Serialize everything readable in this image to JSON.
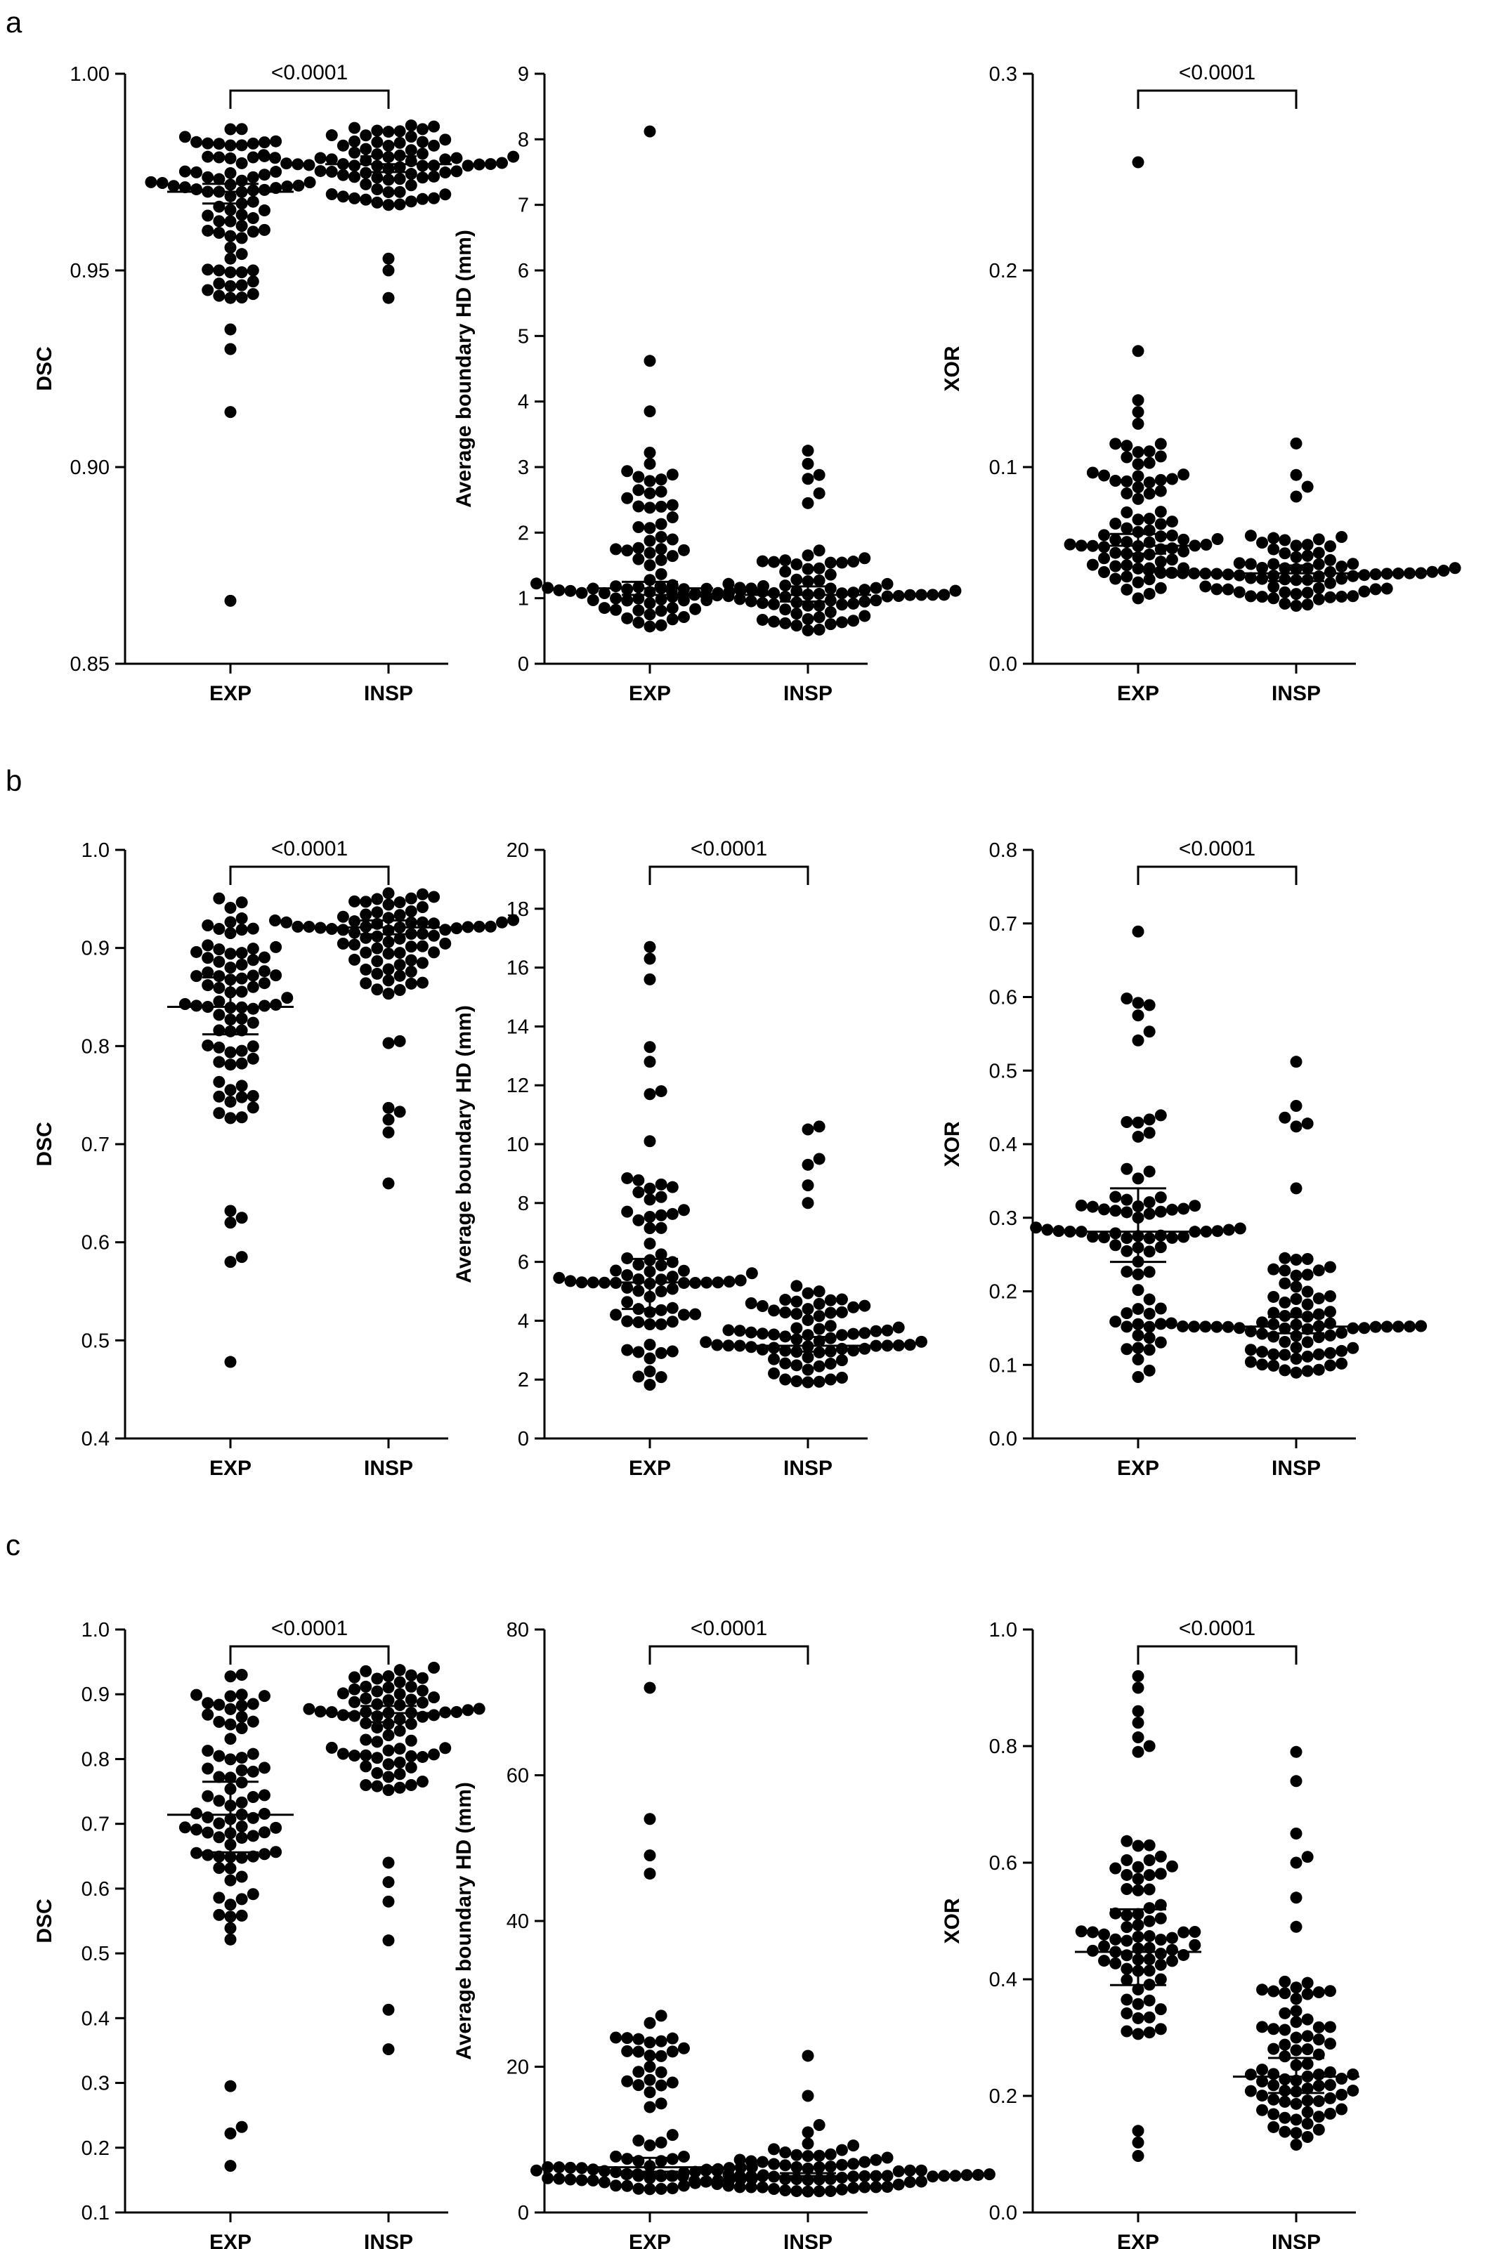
{
  "panel_labels": [
    "a",
    "b",
    "c"
  ],
  "chart_data": [
    {
      "type": "scatter",
      "panel": "a",
      "ylabel": "DSC",
      "ylim": [
        0.85,
        1.0
      ],
      "yticks": [
        0.85,
        0.9,
        0.95,
        1.0
      ],
      "ytick_labels": [
        "0.85",
        "0.90",
        "0.95",
        "1.00"
      ],
      "categories": [
        "EXP",
        "INSP"
      ],
      "significance": "<0.0001",
      "series": [
        {
          "category": "EXP",
          "median": 0.97,
          "ci": [
            0.967,
            0.972
          ],
          "min": 0.866,
          "max": 0.986,
          "n": 80,
          "outliers": [
            0.866,
            0.914,
            0.93,
            0.935,
            0.943,
            0.945,
            0.946,
            0.95,
            0.953
          ]
        },
        {
          "category": "INSP",
          "median": 0.977,
          "ci": [
            0.975,
            0.979
          ],
          "min": 0.943,
          "max": 0.987,
          "n": 80,
          "outliers": [
            0.943,
            0.95,
            0.953
          ]
        }
      ]
    },
    {
      "type": "scatter",
      "panel": "a",
      "ylabel": "Average boundary HD (mm)",
      "ylim": [
        0,
        9
      ],
      "yticks": [
        0,
        1,
        2,
        3,
        4,
        5,
        6,
        7,
        8,
        9
      ],
      "ytick_labels": [
        "0",
        "1",
        "2",
        "3",
        "4",
        "5",
        "6",
        "7",
        "8",
        "9"
      ],
      "categories": [
        "EXP",
        "INSP"
      ],
      "significance": "",
      "series": [
        {
          "category": "EXP",
          "median": 1.15,
          "ci": [
            1.05,
            1.25
          ],
          "min": 0.55,
          "max": 8.12,
          "n": 80,
          "outliers": [
            8.12,
            4.62,
            3.85,
            3.22,
            3.05,
            2.85,
            2.6,
            2.4
          ]
        },
        {
          "category": "INSP",
          "median": 1.05,
          "ci": [
            0.95,
            1.18
          ],
          "min": 0.5,
          "max": 3.25,
          "n": 80,
          "outliers": [
            3.25,
            3.05,
            2.88,
            2.82,
            2.6,
            2.45
          ]
        }
      ]
    },
    {
      "type": "scatter",
      "panel": "a",
      "ylabel": "XOR",
      "ylim": [
        0.0,
        0.3
      ],
      "yticks": [
        0.0,
        0.1,
        0.2,
        0.3
      ],
      "ytick_labels": [
        "0.0",
        "0.1",
        "0.2",
        "0.3"
      ],
      "categories": [
        "EXP",
        "INSP"
      ],
      "significance": "<0.0001",
      "series": [
        {
          "category": "EXP",
          "median": 0.06,
          "ci": [
            0.056,
            0.066
          ],
          "min": 0.028,
          "max": 0.255,
          "n": 80,
          "outliers": [
            0.255,
            0.159,
            0.134,
            0.128,
            0.122,
            0.108,
            0.105
          ]
        },
        {
          "category": "INSP",
          "median": 0.046,
          "ci": [
            0.042,
            0.05
          ],
          "min": 0.027,
          "max": 0.112,
          "n": 80,
          "outliers": [
            0.112,
            0.096,
            0.09,
            0.085
          ]
        }
      ]
    },
    {
      "type": "scatter",
      "panel": "b",
      "ylabel": "DSC",
      "ylim": [
        0.4,
        1.0
      ],
      "yticks": [
        0.4,
        0.5,
        0.6,
        0.7,
        0.8,
        0.9,
        1.0
      ],
      "ytick_labels": [
        "0.4",
        "0.5",
        "0.6",
        "0.7",
        "0.8",
        "0.9",
        "1.0"
      ],
      "categories": [
        "EXP",
        "INSP"
      ],
      "significance": "<0.0001",
      "series": [
        {
          "category": "EXP",
          "median": 0.84,
          "ci": [
            0.812,
            0.87
          ],
          "min": 0.478,
          "max": 0.958,
          "n": 80,
          "outliers": [
            0.478,
            0.58,
            0.585,
            0.62,
            0.625,
            0.632
          ]
        },
        {
          "category": "INSP",
          "median": 0.921,
          "ci": [
            0.914,
            0.928
          ],
          "min": 0.66,
          "max": 0.958,
          "n": 80,
          "outliers": [
            0.66,
            0.712,
            0.725,
            0.733,
            0.737,
            0.803,
            0.805
          ]
        }
      ]
    },
    {
      "type": "scatter",
      "panel": "b",
      "ylabel": "Average boundary HD (mm)",
      "ylim": [
        0,
        20
      ],
      "yticks": [
        0,
        2,
        4,
        6,
        8,
        10,
        12,
        14,
        16,
        18,
        20
      ],
      "ytick_labels": [
        "0",
        "2",
        "4",
        "6",
        "8",
        "10",
        "12",
        "14",
        "16",
        "18",
        "20"
      ],
      "categories": [
        "EXP",
        "INSP"
      ],
      "significance": "<0.0001",
      "series": [
        {
          "category": "EXP",
          "median": 5.3,
          "ci": [
            4.4,
            6.1
          ],
          "min": 1.8,
          "max": 16.7,
          "n": 80,
          "outliers": [
            16.7,
            16.3,
            15.6,
            13.3,
            12.8,
            11.8,
            11.7,
            10.1
          ]
        },
        {
          "category": "INSP",
          "median": 3.15,
          "ci": [
            2.95,
            3.45
          ],
          "min": 1.7,
          "max": 10.6,
          "n": 80,
          "outliers": [
            10.6,
            10.5,
            9.5,
            9.3,
            8.6,
            8.0
          ]
        }
      ]
    },
    {
      "type": "scatter",
      "panel": "b",
      "ylabel": "XOR",
      "ylim": [
        0.0,
        0.8
      ],
      "yticks": [
        0.0,
        0.1,
        0.2,
        0.3,
        0.4,
        0.5,
        0.6,
        0.7,
        0.8
      ],
      "ytick_labels": [
        "0.0",
        "0.1",
        "0.2",
        "0.3",
        "0.4",
        "0.5",
        "0.6",
        "0.7",
        "0.8"
      ],
      "categories": [
        "EXP",
        "INSP"
      ],
      "significance": "<0.0001",
      "series": [
        {
          "category": "EXP",
          "median": 0.281,
          "ci": [
            0.24,
            0.34
          ],
          "min": 0.082,
          "max": 0.689,
          "n": 80,
          "outliers": [
            0.689,
            0.598,
            0.592,
            0.589,
            0.575,
            0.553,
            0.541
          ]
        },
        {
          "category": "INSP",
          "median": 0.152,
          "ci": [
            0.143,
            0.165
          ],
          "min": 0.088,
          "max": 0.512,
          "n": 80,
          "outliers": [
            0.512,
            0.452,
            0.436,
            0.428,
            0.424,
            0.34
          ]
        }
      ]
    },
    {
      "type": "scatter",
      "panel": "c",
      "ylabel": "DSC",
      "ylim": [
        0.1,
        1.0
      ],
      "yticks": [
        0.1,
        0.2,
        0.3,
        0.4,
        0.5,
        0.6,
        0.7,
        0.8,
        0.9,
        1.0
      ],
      "ytick_labels": [
        "0.1",
        "0.2",
        "0.3",
        "0.4",
        "0.5",
        "0.6",
        "0.7",
        "0.8",
        "0.9",
        "1.0"
      ],
      "categories": [
        "EXP",
        "INSP"
      ],
      "significance": "<0.0001",
      "series": [
        {
          "category": "EXP",
          "median": 0.714,
          "ci": [
            0.656,
            0.765
          ],
          "min": 0.172,
          "max": 0.95,
          "n": 80,
          "outliers": [
            0.172,
            0.222,
            0.232,
            0.295
          ]
        },
        {
          "category": "INSP",
          "median": 0.871,
          "ci": [
            0.857,
            0.882
          ],
          "min": 0.352,
          "max": 0.942,
          "n": 80,
          "outliers": [
            0.352,
            0.413,
            0.52,
            0.58,
            0.61,
            0.64
          ]
        }
      ]
    },
    {
      "type": "scatter",
      "panel": "c",
      "ylabel": "Average boundary HD (mm)",
      "ylim": [
        0,
        80
      ],
      "yticks": [
        0,
        20,
        40,
        60,
        80
      ],
      "ytick_labels": [
        "0",
        "20",
        "40",
        "60",
        "80"
      ],
      "categories": [
        "EXP",
        "INSP"
      ],
      "significance": "<0.0001",
      "series": [
        {
          "category": "EXP",
          "median": 6.2,
          "ci": [
            5.6,
            7.5
          ],
          "min": 3.0,
          "max": 72.0,
          "n": 80,
          "outliers": [
            72.0,
            54.0,
            49.0,
            46.5,
            27.0,
            26.0,
            24.0,
            20.0,
            18.0,
            16.5
          ]
        },
        {
          "category": "INSP",
          "median": 5.0,
          "ci": [
            4.6,
            5.4
          ],
          "min": 2.8,
          "max": 21.5,
          "n": 80,
          "outliers": [
            21.5,
            16.0,
            12.0,
            11.0
          ]
        }
      ]
    },
    {
      "type": "scatter",
      "panel": "c",
      "ylabel": "XOR",
      "ylim": [
        0.0,
        1.0
      ],
      "yticks": [
        0.0,
        0.2,
        0.4,
        0.6,
        0.8,
        1.0
      ],
      "ytick_labels": [
        "0.0",
        "0.2",
        "0.4",
        "0.6",
        "0.8",
        "1.0"
      ],
      "categories": [
        "EXP",
        "INSP"
      ],
      "significance": "<0.0001",
      "series": [
        {
          "category": "EXP",
          "median": 0.447,
          "ci": [
            0.39,
            0.52
          ],
          "min": 0.097,
          "max": 0.92,
          "n": 80,
          "outliers": [
            0.92,
            0.9,
            0.86,
            0.84,
            0.815,
            0.8,
            0.79,
            0.14,
            0.12,
            0.097
          ]
        },
        {
          "category": "INSP",
          "median": 0.233,
          "ci": [
            0.205,
            0.265
          ],
          "min": 0.112,
          "max": 0.79,
          "n": 80,
          "outliers": [
            0.79,
            0.74,
            0.65,
            0.61,
            0.6,
            0.54,
            0.49
          ]
        }
      ]
    }
  ]
}
